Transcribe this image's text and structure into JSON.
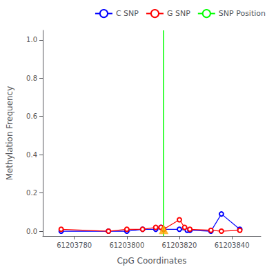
{
  "chart_data": {
    "type": "line",
    "xlabel": "CpG Coordinates",
    "ylabel": "Methylation Frequency",
    "xlim": [
      61203768,
      61203851
    ],
    "ylim": [
      -0.025,
      1.05
    ],
    "xticks": [
      61203780,
      61203800,
      61203820,
      61203840
    ],
    "yticks": [
      {
        "value": 0,
        "label": "0.0"
      },
      0.2,
      0.4,
      0.6,
      0.8,
      {
        "value": 1,
        "label": "1.0"
      }
    ],
    "grid": false,
    "legend": "upper right",
    "series": [
      {
        "name": "C SNP",
        "type": "line",
        "color": "blue",
        "marker": "circle",
        "x": [
          61203775,
          61203793,
          61203800,
          61203806,
          61203811,
          61203813,
          61203814,
          61203820,
          61203823,
          61203824,
          61203832,
          61203836,
          61203843
        ],
        "values": [
          0.0,
          0.0,
          0.0,
          0.01,
          0.01,
          0.02,
          0.01,
          0.01,
          0.005,
          0.005,
          0.0,
          0.09,
          0.01
        ]
      },
      {
        "name": "G SNP",
        "type": "line",
        "color": "red",
        "marker": "circle",
        "x": [
          61203775,
          61203793,
          61203800,
          61203806,
          61203811,
          61203813,
          61203814,
          61203820,
          61203822,
          61203824,
          61203832,
          61203836,
          61203843
        ],
        "values": [
          0.01,
          0.0,
          0.01,
          0.01,
          0.02,
          0.02,
          0.01,
          0.06,
          0.02,
          0.01,
          0.005,
          0.0,
          0.005
        ]
      },
      {
        "name": "SNP Position",
        "type": "vline",
        "color": "lime",
        "x": [
          61203814
        ]
      },
      {
        "type": "scatter",
        "color": "#FFA500",
        "marker": "triangle",
        "x": [
          61203814
        ],
        "values": [
          0.01
        ]
      }
    ]
  }
}
